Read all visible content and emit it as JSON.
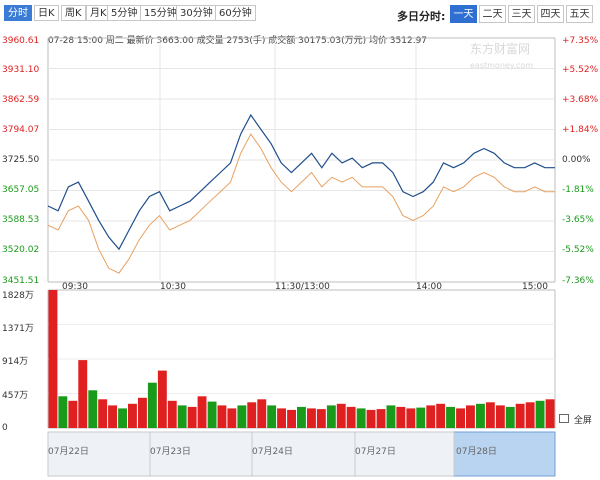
{
  "toolbar": {
    "tabs": [
      {
        "label": "分时",
        "active": true
      },
      {
        "label": "日K",
        "active": false
      },
      {
        "label": "周K",
        "active": false
      },
      {
        "label": "月K",
        "active": false
      },
      {
        "label": "5分钟",
        "active": false
      },
      {
        "label": "15分钟",
        "active": false
      },
      {
        "label": "30分钟",
        "active": false
      },
      {
        "label": "60分钟",
        "active": false
      }
    ],
    "multi_day_label": "多日分时:",
    "day_tabs": [
      {
        "label": "一天",
        "active": true
      },
      {
        "label": "二天",
        "active": false
      },
      {
        "label": "三天",
        "active": false
      },
      {
        "label": "四天",
        "active": false
      },
      {
        "label": "五天",
        "active": false
      }
    ]
  },
  "info_bar": "07-28 15:00 周二 最新价 3663.00 成交量 2753(手) 成交额 30175.03(万元) 均价 3512.97",
  "watermark": {
    "name": "东方财富网",
    "url": "eastmoney.com"
  },
  "price_axis": {
    "left": [
      "3960.61",
      "3931.10",
      "3862.59",
      "3794.07",
      "3725.50",
      "3657.05",
      "3588.53",
      "3520.02",
      "3451.51"
    ],
    "right": [
      "+7.35%",
      "+5.52%",
      "+3.68%",
      "+1.84%",
      "0.00%",
      "-1.81%",
      "-3.65%",
      "-5.52%",
      "-7.36%"
    ]
  },
  "time_axis": [
    "09:30",
    "10:30",
    "11:30/13:00",
    "14:00",
    "15:00"
  ],
  "volume_axis": [
    "1828万",
    "1371万",
    "914万",
    "457万",
    "0"
  ],
  "full_screen_label": "全屏",
  "navigator": {
    "dates": [
      "07月22日",
      "07月23日",
      "07月24日",
      "07月27日",
      "07月28日"
    ]
  },
  "colors": {
    "price_line": "#1f4e8c",
    "avg_line": "#e8a060",
    "up": "#e02020",
    "down": "#1a9a1a",
    "active_tab": "#2f6fd1"
  },
  "chart_data": {
    "type": "line",
    "price_range": [
      3451.51,
      3960.61
    ],
    "volume_range": [
      0,
      1828
    ],
    "series": [
      {
        "name": "",
        "values": [
          3610,
          3600,
          3650,
          3660,
          3620,
          3580,
          3545,
          3520,
          3560,
          3600,
          3630,
          3640,
          3600,
          3610,
          3620,
          3640,
          3660,
          3680,
          3700,
          3760,
          3800,
          3770,
          3740,
          3700,
          3680,
          3700,
          3720,
          3690,
          3720,
          3700,
          3710,
          3690,
          3700,
          3700,
          3680,
          3640,
          3630,
          3640,
          3660,
          3700,
          3690,
          3700,
          3720,
          3730,
          3720,
          3700,
          3690,
          3690,
          3700,
          3690,
          3690
        ]
      },
      {
        "name": "",
        "values": [
          3570,
          3560,
          3600,
          3610,
          3580,
          3520,
          3480,
          3470,
          3500,
          3540,
          3570,
          3590,
          3560,
          3570,
          3580,
          3600,
          3620,
          3640,
          3660,
          3720,
          3760,
          3730,
          3690,
          3660,
          3640,
          3660,
          3680,
          3650,
          3670,
          3660,
          3670,
          3650,
          3650,
          3650,
          3630,
          3590,
          3580,
          3590,
          3610,
          3650,
          3640,
          3650,
          3670,
          3680,
          3670,
          3650,
          3640,
          3640,
          3650,
          3640,
          3640
        ]
      }
    ],
    "volume": [
      1828,
      420,
      360,
      900,
      500,
      380,
      300,
      260,
      320,
      400,
      600,
      760,
      360,
      300,
      280,
      420,
      350,
      300,
      260,
      300,
      340,
      380,
      300,
      260,
      240,
      280,
      260,
      250,
      300,
      320,
      280,
      260,
      240,
      250,
      300,
      280,
      260,
      270,
      300,
      320,
      280,
      260,
      300,
      320,
      340,
      300,
      280,
      320,
      340,
      360,
      380
    ]
  }
}
